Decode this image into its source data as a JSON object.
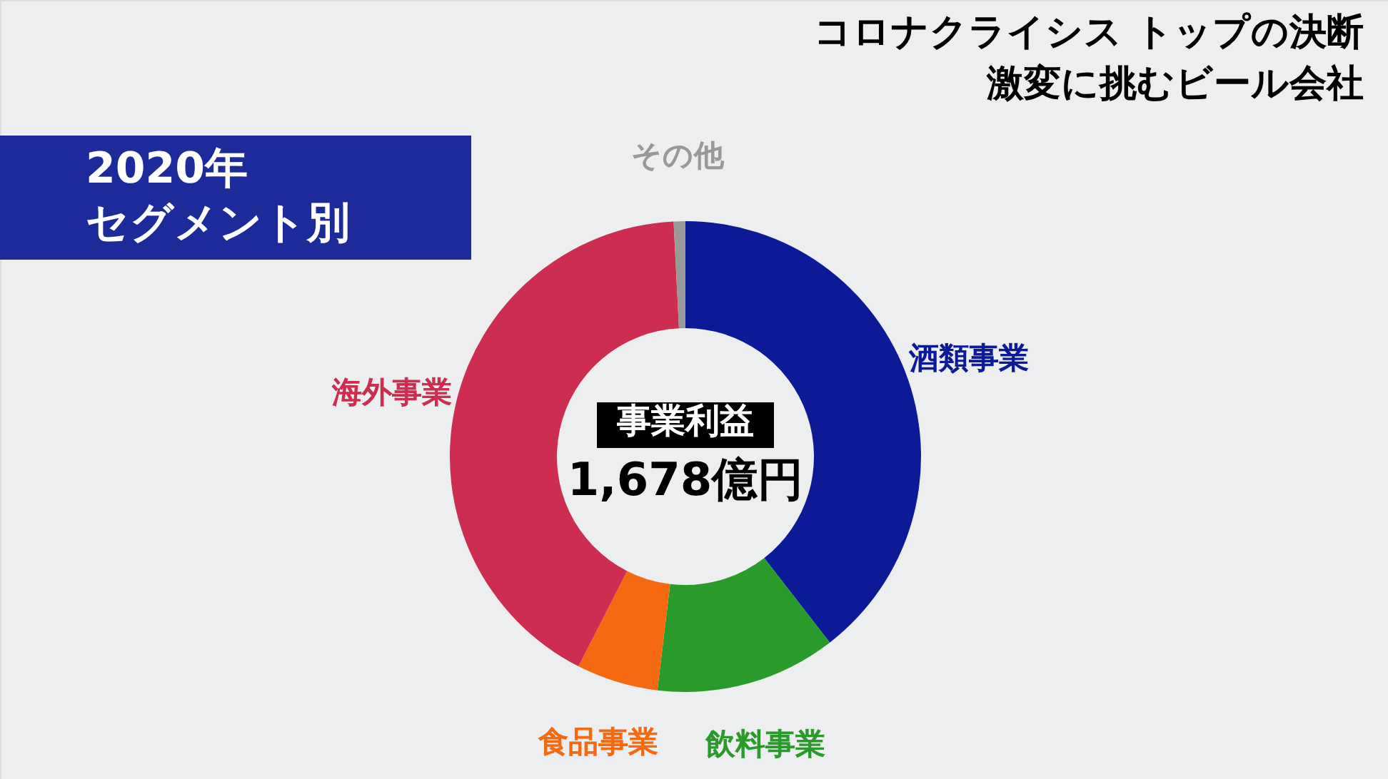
{
  "chart_data": {
    "type": "donut",
    "title": "激変に挑むビール会社",
    "subtitle": "コロナクライシス トップの決断",
    "categories": [
      "酒類事業",
      "飲料事業",
      "食品事業",
      "海外事業",
      "その他"
    ],
    "values": [
      39.5,
      12.4,
      5.6,
      41.7,
      0.8
    ],
    "colors": [
      "#0c1a98",
      "#2a9a2a",
      "#f56a10",
      "#cc2d50",
      "#999999"
    ],
    "annotations": [
      "2020年",
      "セグメント別",
      "事業利益",
      "1,678億円"
    ],
    "legend": false
  }
}
